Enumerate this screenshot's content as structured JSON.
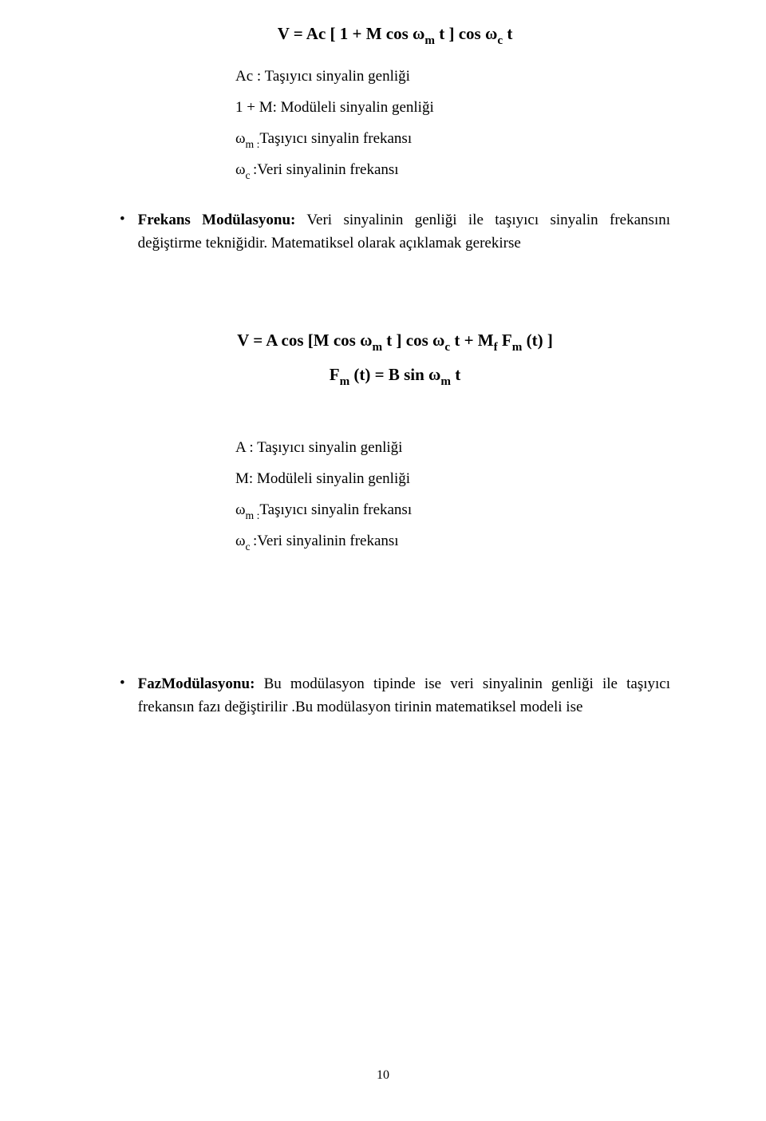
{
  "formula1": {
    "prefix": "V = Ac [ 1 + M cos ",
    "omega1": "ω",
    "sub1": "m",
    "mid1": " t ] cos ",
    "omega2": "ω",
    "sub2": "c",
    "suffix": " t"
  },
  "defs1": {
    "line1": "Ac : Taşıyıcı sinyalin genliği",
    "line2": "1 + M: Modüleli sinyalin genliği",
    "line3_pre": "ω",
    "line3_sub": "m :",
    "line3_post": "Taşıyıcı sinyalin frekansı",
    "line4_pre": "ω",
    "line4_sub": "c ",
    "line4_post": ":Veri sinyalinin frekansı"
  },
  "bullet1": {
    "lead": "Frekans Modülasyonu:",
    "body_a": " Veri sinyalinin genliği ile taşıyıcı sinyalin frekansını değiştirme tekniğidir. Matematiksel olarak  açıklamak gerekirse"
  },
  "formula2": {
    "p1": "V = A cos [M cos ",
    "w1": "ω",
    "s1": "m",
    "p2": " t ] cos ",
    "w2": "ω",
    "s2": "c",
    "p3": " t + M",
    "s3": "f",
    "p4": " F",
    "s4": "m",
    "p5": " (t) ]"
  },
  "formula3": {
    "p1": "F",
    "s1": "m",
    "p2": " (t) = B sin ",
    "w1": "ω",
    "s2": "m",
    "p3": " t"
  },
  "defs2": {
    "line1": "A  : Taşıyıcı sinyalin genliği",
    "line2": "M: Modüleli sinyalin genliği",
    "line3_pre": "ω",
    "line3_sub": "m :",
    "line3_post": "Taşıyıcı sinyalin frekansı",
    "line4_pre": "ω",
    "line4_sub": "c ",
    "line4_post": ":Veri sinyalinin frekansı"
  },
  "bullet2": {
    "lead": "FazModülasyonu:",
    "body_a": " Bu modülasyon tipinde ise veri sinyalinin genliği ile taşıyıcı frekansın fazı değiştirilir .Bu modülasyon tirinin matematiksel modeli ise"
  },
  "page_number": "10"
}
